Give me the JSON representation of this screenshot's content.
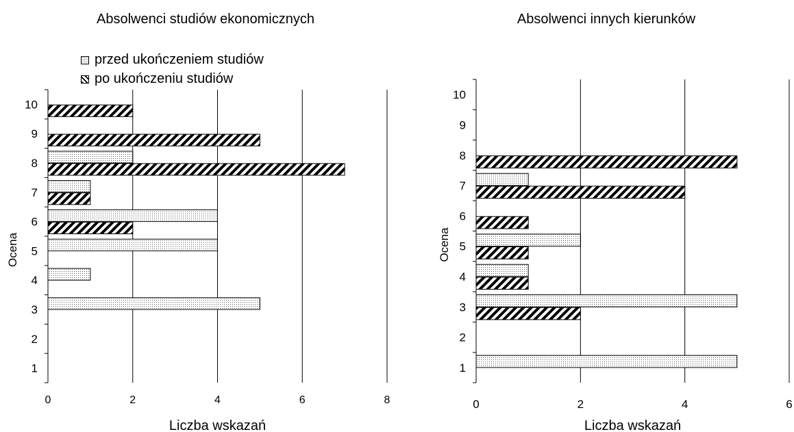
{
  "legend": {
    "before_label": "przed ukończeniem studiów",
    "after_label": "po ukończeniu studiów"
  },
  "chart_data": [
    {
      "type": "bar",
      "orientation": "horizontal",
      "title": "Absolwenci studiów ekonomicznych",
      "xlabel": "Liczba wskazań",
      "ylabel": "Ocena",
      "categories": [
        "1",
        "2",
        "3",
        "4",
        "5",
        "6",
        "7",
        "8",
        "9",
        "10"
      ],
      "xlim": [
        0,
        8
      ],
      "xticks": [
        0,
        2,
        4,
        6,
        8
      ],
      "grid": true,
      "legend_position": "top-left",
      "series": [
        {
          "name": "przed ukończeniem studiów",
          "values": [
            0,
            0,
            5,
            1,
            4,
            4,
            1,
            2,
            0,
            0
          ]
        },
        {
          "name": "po ukończeniu studiów",
          "values": [
            0,
            0,
            0,
            0,
            0,
            2,
            1,
            7,
            5,
            2
          ]
        }
      ]
    },
    {
      "type": "bar",
      "orientation": "horizontal",
      "title": "Absolwenci innych kierunków",
      "xlabel": "Liczba wskazań",
      "ylabel": "Ocena",
      "categories": [
        "1",
        "2",
        "3",
        "4",
        "5",
        "6",
        "7",
        "8",
        "9",
        "10"
      ],
      "xlim": [
        0,
        6
      ],
      "xticks": [
        0,
        2,
        4,
        6
      ],
      "grid": true,
      "series": [
        {
          "name": "przed ukończeniem studiów",
          "values": [
            5,
            0,
            5,
            1,
            2,
            0,
            1,
            0,
            0,
            0
          ]
        },
        {
          "name": "po ukończeniu studiów",
          "values": [
            0,
            0,
            2,
            1,
            1,
            1,
            4,
            5,
            0,
            0
          ]
        }
      ]
    }
  ]
}
